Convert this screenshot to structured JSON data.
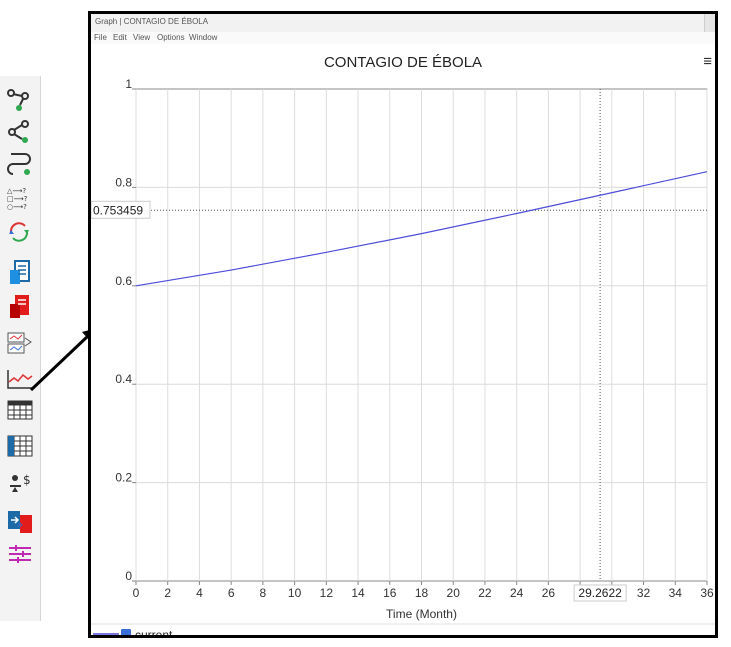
{
  "toolbar": {
    "icons": [
      "causal-link-icon",
      "feedback-icon",
      "loop-icon",
      "uses-tree-icon",
      "cycle-icon",
      "document-icon",
      "red-document-icon",
      "compare-icon",
      "graph-icon",
      "table-icon",
      "table-time-icon",
      "runs-compare-icon",
      "swap-icon",
      "options-icon"
    ],
    "more_label": "»"
  },
  "window": {
    "title": "Graph | CONTAGIO DE ÉBOLA",
    "menus": [
      "File",
      "Edit",
      "View",
      "Options",
      "Window"
    ]
  },
  "chart_data": {
    "type": "line",
    "title": "CONTAGIO DE ÉBOLA",
    "xlabel": "Time (Month)",
    "ylabel": "",
    "xlim": [
      0,
      36
    ],
    "ylim": [
      0,
      1
    ],
    "xticks": [
      "0",
      "2",
      "4",
      "6",
      "8",
      "10",
      "12",
      "14",
      "16",
      "18",
      "20",
      "22",
      "24",
      "26",
      "28",
      "30",
      "32",
      "34",
      "36"
    ],
    "yticks": [
      "0",
      "0.2",
      "0.4",
      "0.6",
      "0.8",
      "1"
    ],
    "grid": true,
    "legend": "bottom-left",
    "series": [
      {
        "name": "current",
        "color": "#4d4dd9",
        "x": [
          0,
          6,
          12,
          18,
          24,
          29.26,
          36
        ],
        "y": [
          0.6,
          0.632,
          0.668,
          0.706,
          0.747,
          0.784,
          0.832
        ]
      }
    ],
    "cursor": {
      "x_readout": "29.2622",
      "y_readout": "0.753459",
      "x": 29.2622,
      "y": 0.753459
    }
  }
}
